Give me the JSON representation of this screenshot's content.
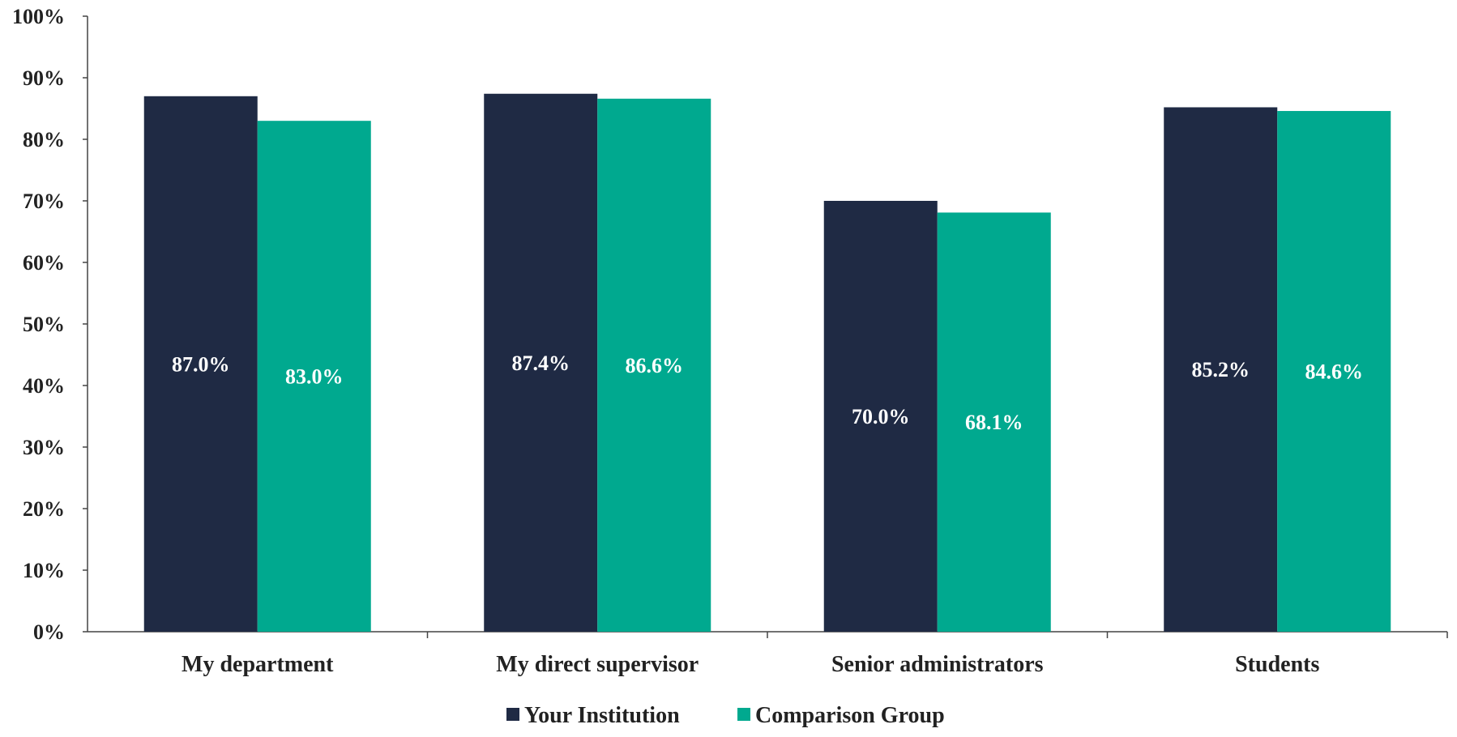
{
  "chart_data": {
    "type": "bar",
    "categories": [
      "My department",
      "My direct supervisor",
      "Senior administrators",
      "Students"
    ],
    "series": [
      {
        "name": "Your Institution",
        "color": "#1f2a44",
        "values": [
          87.0,
          87.4,
          70.0,
          85.2
        ],
        "labels": [
          "87.0%",
          "87.4%",
          "70.0%",
          "85.2%"
        ]
      },
      {
        "name": "Comparison Group",
        "color": "#00a98f",
        "values": [
          83.0,
          86.6,
          68.1,
          84.6
        ],
        "labels": [
          "83.0%",
          "86.6%",
          "68.1%",
          "84.6%"
        ]
      }
    ],
    "ylim": [
      0,
      100
    ],
    "yticks": [
      "0%",
      "10%",
      "20%",
      "30%",
      "40%",
      "50%",
      "60%",
      "70%",
      "80%",
      "90%",
      "100%"
    ],
    "xlabel": "",
    "ylabel": "",
    "grid": false,
    "legend_position": "bottom"
  }
}
